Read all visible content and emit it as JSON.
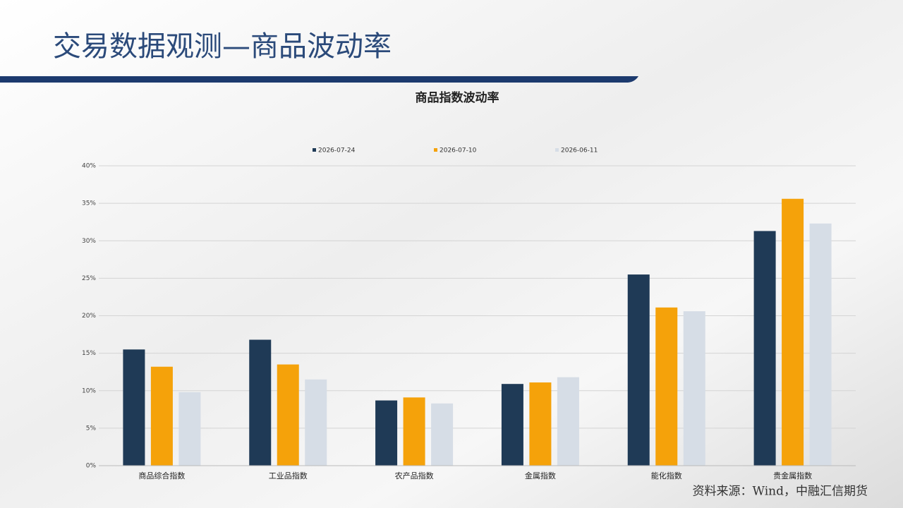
{
  "header": {
    "title": "交易数据观测—商品波动率"
  },
  "chart_data": {
    "type": "bar",
    "title": "商品指数波动率",
    "categories": [
      "商品综合指数",
      "工业品指数",
      "农产品指数",
      "金属指数",
      "能化指数",
      "贵金属指数"
    ],
    "series": [
      {
        "name": "2026-07-24",
        "color": "#1f3a56",
        "values": [
          15.5,
          16.8,
          8.7,
          10.9,
          25.5,
          31.3
        ]
      },
      {
        "name": "2026-07-10",
        "color": "#f5a20a",
        "values": [
          13.2,
          13.5,
          9.1,
          11.1,
          21.1,
          35.6
        ]
      },
      {
        "name": "2026-06-11",
        "color": "#d6dde6",
        "values": [
          9.8,
          11.5,
          8.3,
          11.8,
          20.6,
          32.3
        ]
      }
    ],
    "ylim": [
      0,
      40
    ],
    "yticks": [
      {
        "value": 0,
        "label": "0%"
      },
      {
        "value": 5,
        "label": "5%"
      },
      {
        "value": 10,
        "label": "10%"
      },
      {
        "value": 15,
        "label": "15%"
      },
      {
        "value": 20,
        "label": "20%"
      },
      {
        "value": 25,
        "label": "25%"
      },
      {
        "value": 30,
        "label": "30%"
      },
      {
        "value": 35,
        "label": "35%"
      },
      {
        "value": 40,
        "label": "40%"
      }
    ],
    "grid": true,
    "legend": "top"
  },
  "footer": {
    "source": "资料来源：Wind，中融汇信期货"
  }
}
